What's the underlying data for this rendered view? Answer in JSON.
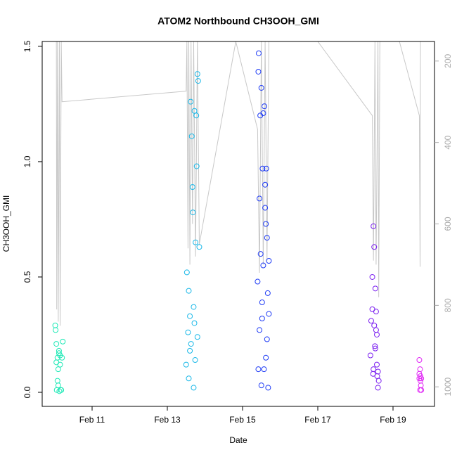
{
  "chart_data": {
    "type": "scatter",
    "title": "ATOM2 Northbound CH3OOH_GMI",
    "xlabel": "Date",
    "ylabel": "CH3OOH_GMI",
    "xlim": [
      9.673,
      20.103
    ],
    "xticks": [
      {
        "value": 11,
        "label": "Feb 11"
      },
      {
        "value": 13,
        "label": "Feb 13"
      },
      {
        "value": 15,
        "label": "Feb 15"
      },
      {
        "value": 17,
        "label": "Feb 17"
      },
      {
        "value": 19,
        "label": "Feb 19"
      }
    ],
    "ylim": [
      -0.061,
      1.521
    ],
    "yticks": [
      {
        "value": 0,
        "label": "0.0"
      },
      0.5,
      {
        "value": 1,
        "label": "1.0"
      },
      1.5
    ],
    "y2lim": [
      1048,
      152
    ],
    "y2ticks": [
      200,
      400,
      600,
      800,
      1000
    ],
    "series": [
      {
        "color": "#1de9b6",
        "x": [
          10.02,
          10.03,
          10.05,
          10.05,
          10.06,
          10.08,
          10.1,
          10.1,
          10.12,
          10.13,
          10.15,
          10.15,
          10.17,
          10.2,
          10.22,
          10.08,
          10.12,
          10.18
        ],
        "values": [
          0.29,
          0.27,
          0.21,
          0.13,
          0.01,
          0.15,
          0.1,
          0.03,
          0.17,
          0.005,
          0.16,
          0.12,
          0.01,
          0.15,
          0.22,
          0.05,
          0.18,
          0.01
        ]
      },
      {
        "color": "#1ab8e8",
        "x": [
          13.5,
          13.52,
          13.55,
          13.57,
          13.6,
          13.6,
          13.62,
          13.65,
          13.67,
          13.68,
          13.7,
          13.72,
          13.72,
          13.75,
          13.77,
          13.78,
          13.8,
          13.82,
          13.85,
          13.57,
          13.63,
          13.7,
          13.74,
          13.8
        ],
        "values": [
          0.12,
          0.52,
          0.26,
          0.44,
          0.18,
          0.33,
          1.26,
          1.11,
          0.89,
          0.78,
          0.02,
          1.22,
          0.3,
          0.65,
          1.2,
          0.98,
          1.38,
          1.35,
          0.63,
          0.06,
          0.21,
          0.37,
          0.14,
          0.24
        ]
      },
      {
        "color": "#1f3cf5",
        "x": [
          15.4,
          15.42,
          15.43,
          15.45,
          15.47,
          15.48,
          15.5,
          15.52,
          15.53,
          15.55,
          15.57,
          15.58,
          15.6,
          15.62,
          15.63,
          15.65,
          15.67,
          15.68,
          15.7,
          15.45,
          15.5,
          15.55,
          15.6,
          15.65,
          15.7,
          15.42,
          15.52,
          15.62
        ],
        "values": [
          0.48,
          1.39,
          1.47,
          0.84,
          1.2,
          0.6,
          1.32,
          0.32,
          0.97,
          1.21,
          0.1,
          1.24,
          0.8,
          0.15,
          0.97,
          0.67,
          0.43,
          0.02,
          0.34,
          0.27,
          0.03,
          0.55,
          0.9,
          0.23,
          0.57,
          0.1,
          0.39,
          0.73
        ]
      },
      {
        "color": "#7b1ff0",
        "x": [
          18.4,
          18.42,
          18.45,
          18.47,
          18.48,
          18.5,
          18.5,
          18.52,
          18.53,
          18.55,
          18.55,
          18.57,
          18.58,
          18.6,
          18.62,
          18.45,
          18.48,
          18.53,
          18.57,
          18.6
        ],
        "values": [
          0.16,
          0.31,
          0.5,
          0.08,
          0.72,
          0.29,
          0.63,
          0.2,
          0.45,
          0.35,
          0.27,
          0.12,
          0.07,
          0.02,
          0.05,
          0.36,
          0.1,
          0.19,
          0.25,
          0.09
        ]
      },
      {
        "color": "#e023f5",
        "x": [
          19.7,
          19.7,
          19.72,
          19.72,
          19.73,
          19.74,
          19.75,
          19.7,
          19.73,
          19.75
        ],
        "values": [
          0.14,
          0.06,
          0.1,
          0.01,
          0.07,
          0.03,
          0.06,
          0.08,
          0.05,
          0.01
        ]
      },
      {
        "type": "line",
        "axis": "y2",
        "color": "#c8c8c8",
        "x": [
          10.05,
          10.06,
          10.08,
          10.1,
          10.13,
          10.15,
          10.18,
          10.2,
          13.5,
          13.52,
          13.55,
          13.57,
          13.6,
          13.63,
          13.67,
          13.7,
          13.75,
          13.8,
          13.85,
          14.82,
          15.4,
          15.45,
          15.5,
          15.55,
          15.6,
          15.65,
          15.7,
          17.0,
          18.45,
          18.48,
          18.52,
          18.55,
          18.6,
          18.62,
          18.65,
          19.17,
          19.7,
          19.72,
          19.73
        ],
        "values": [
          152,
          810,
          152,
          840,
          152,
          850,
          152,
          300,
          274,
          152,
          660,
          152,
          700,
          152,
          600,
          152,
          680,
          152,
          650,
          152,
          368,
          720,
          152,
          700,
          152,
          690,
          152,
          152,
          334,
          690,
          152,
          700,
          152,
          780,
          152,
          152,
          334,
          705,
          152
        ]
      }
    ]
  }
}
